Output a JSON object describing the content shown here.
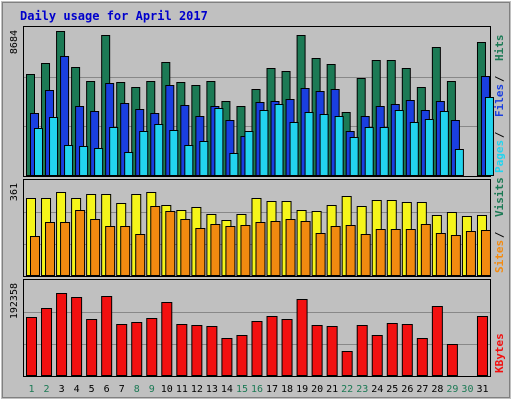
{
  "chart_data": {
    "type": "bar",
    "title": "Daily usage for April 2017",
    "colors": {
      "hits": "#1c7a55",
      "files": "#1a3fe0",
      "pages": "#22d4ee",
      "visits": "#f5f51a",
      "sites": "#f28a10",
      "kbytes": "#f21010",
      "title_text": "#0000cc",
      "weekend_label": "#1c7a55",
      "background": "#c0c0c0",
      "plot_background": "#c0c0c0",
      "gridline": "#888888"
    },
    "categories": [
      "1",
      "2",
      "3",
      "4",
      "5",
      "6",
      "7",
      "8",
      "9",
      "10",
      "11",
      "12",
      "13",
      "14",
      "15",
      "16",
      "17",
      "18",
      "19",
      "20",
      "21",
      "22",
      "23",
      "24",
      "25",
      "26",
      "27",
      "28",
      "29",
      "30",
      "31"
    ],
    "weekend_days": [
      "1",
      "2",
      "8",
      "9",
      "15",
      "16",
      "22",
      "23",
      "29",
      "30"
    ],
    "panels": [
      {
        "name": "hits-files-pages",
        "y_tick_label": "8684",
        "y_max": 8684,
        "axis_labels": [
          "Pages",
          "Files",
          "Hits"
        ],
        "axis_label_colors": [
          "#22d4ee",
          "#1a3fe0",
          "#1c7a55"
        ],
        "series": [
          {
            "name": "Hits",
            "color": "#1c7a55",
            "values": [
              6090,
              6790,
              8684,
              6530,
              5670,
              8470,
              5630,
              5340,
              5660,
              6810,
              5630,
              5460,
              5700,
              4500,
              4200,
              5230,
              6440,
              6300,
              8470,
              7050,
              6680,
              3820,
              5850,
              6960,
              6960,
              6490,
              5310,
              7720,
              5670,
              null,
              8040
            ]
          },
          {
            "name": "Files",
            "color": "#1a3fe0",
            "values": [
              3760,
              5130,
              7180,
              4190,
              3900,
              5550,
              4380,
              4040,
              3770,
              5470,
              4280,
              3620,
              4220,
              3340,
              2400,
              4410,
              4480,
              4630,
              5250,
              5090,
              5230,
              2690,
              3580,
              4170,
              4300,
              4570,
              3960,
              4510,
              3340,
              null,
              5970
            ]
          },
          {
            "name": "Pages",
            "color": "#22d4ee",
            "values": [
              2870,
              3520,
              1870,
              1790,
              1680,
              2910,
              1410,
              2700,
              3130,
              2770,
              1860,
              2110,
              4100,
              1400,
              2720,
              3970,
              4300,
              3250,
              3830,
              3720,
              3620,
              2360,
              2930,
              2940,
              3960,
              3250,
              3430,
              3900,
              1630,
              null,
              4730
            ]
          }
        ]
      },
      {
        "name": "visits-sites",
        "y_tick_label": "361",
        "y_max": 361,
        "axis_labels": [
          "Sites",
          "Visits"
        ],
        "axis_label_colors": [
          "#f28a10",
          "#1c7a55"
        ],
        "series": [
          {
            "name": "Visits",
            "color": "#f5f51a",
            "values": [
              305,
              305,
              330,
              305,
              320,
              320,
              285,
              320,
              330,
              280,
              260,
              270,
              245,
              220,
              245,
              305,
              295,
              295,
              260,
              255,
              280,
              315,
              275,
              300,
              300,
              290,
              290,
              240,
              250,
              235,
              240
            ]
          },
          {
            "name": "Sites",
            "color": "#f28a10",
            "values": [
              155,
              210,
              210,
              260,
              225,
              195,
              195,
              165,
              275,
              255,
              225,
              190,
              205,
              195,
              200,
              210,
              215,
              225,
              215,
              170,
              195,
              200,
              165,
              185,
              185,
              185,
              205,
              170,
              160,
              175,
              180
            ]
          }
        ]
      },
      {
        "name": "kbytes",
        "y_tick_label": "192358",
        "y_max": 192358,
        "axis_labels": [
          "KBytes"
        ],
        "axis_label_colors": [
          "#f21010"
        ],
        "series": [
          {
            "name": "KBytes",
            "color": "#f21010",
            "values": [
              123000,
              142000,
              173000,
              166000,
              120000,
              168000,
              109000,
              112000,
              121000,
              154000,
              108000,
              106000,
              104000,
              80000,
              86000,
              116000,
              126000,
              120000,
              161000,
              107000,
              105000,
              52000,
              107000,
              86000,
              110000,
              109000,
              80000,
              147000,
              67000,
              null,
              126000
            ]
          }
        ]
      }
    ]
  }
}
